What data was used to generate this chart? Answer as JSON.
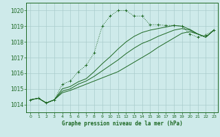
{
  "title": "Graphe pression niveau de la mer (hPa)",
  "bg_color": "#ceeaea",
  "grid_color": "#aacccc",
  "line_color": "#1a6620",
  "xlim": [
    -0.5,
    23.5
  ],
  "ylim": [
    1013.5,
    1020.5
  ],
  "yticks": [
    1014,
    1015,
    1016,
    1017,
    1018,
    1019,
    1020
  ],
  "xticks": [
    0,
    1,
    2,
    3,
    4,
    5,
    6,
    7,
    8,
    9,
    10,
    11,
    12,
    13,
    14,
    15,
    16,
    17,
    18,
    19,
    20,
    21,
    22,
    23
  ],
  "series_main": [
    1014.3,
    1014.4,
    1014.1,
    1014.3,
    1015.3,
    1015.5,
    1016.1,
    1016.5,
    1017.3,
    1019.0,
    1019.65,
    1020.0,
    1020.0,
    1019.65,
    1019.65,
    1019.1,
    1019.1,
    1019.05,
    1019.05,
    1019.0,
    1018.5,
    1018.3,
    1018.45,
    1018.75
  ],
  "series_others": [
    [
      1014.3,
      1014.4,
      1014.1,
      1014.3,
      1015.0,
      1015.15,
      1015.45,
      1015.65,
      1016.1,
      1016.6,
      1017.05,
      1017.55,
      1018.0,
      1018.35,
      1018.6,
      1018.75,
      1018.85,
      1018.95,
      1019.05,
      1019.0,
      1018.8,
      1018.5,
      1018.3,
      1018.75
    ],
    [
      1014.3,
      1014.4,
      1014.1,
      1014.3,
      1014.85,
      1015.0,
      1015.3,
      1015.5,
      1015.8,
      1016.15,
      1016.5,
      1016.85,
      1017.25,
      1017.6,
      1017.9,
      1018.1,
      1018.35,
      1018.55,
      1018.75,
      1018.85,
      1018.75,
      1018.5,
      1018.3,
      1018.75
    ],
    [
      1014.3,
      1014.4,
      1014.1,
      1014.3,
      1014.75,
      1014.9,
      1015.1,
      1015.3,
      1015.5,
      1015.7,
      1015.9,
      1016.1,
      1016.4,
      1016.7,
      1017.0,
      1017.3,
      1017.65,
      1017.95,
      1018.25,
      1018.55,
      1018.65,
      1018.5,
      1018.3,
      1018.75
    ]
  ]
}
